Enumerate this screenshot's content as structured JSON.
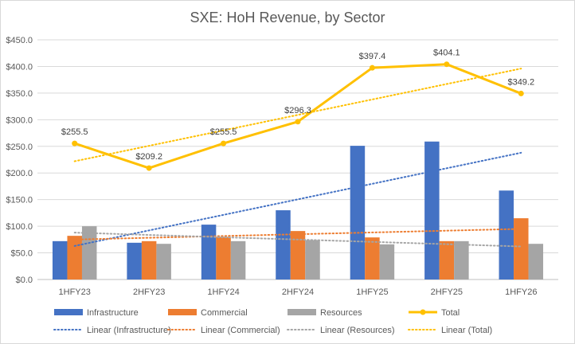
{
  "chart_data": {
    "type": "bar",
    "title": "SXE: HoH Revenue, by Sector",
    "xlabel": "",
    "ylabel": "",
    "ylim": [
      0,
      450
    ],
    "ytick_step": 50,
    "ytick_labels": [
      "$0.0",
      "$50.0",
      "$100.0",
      "$150.0",
      "$200.0",
      "$250.0",
      "$300.0",
      "$350.0",
      "$400.0",
      "$450.0"
    ],
    "grid": true,
    "legend_position": "bottom",
    "categories": [
      "1HFY23",
      "2HFY23",
      "1HFY24",
      "2HFY24",
      "1HFY25",
      "2HFY25",
      "1HFY26"
    ],
    "series": [
      {
        "name": "Infrastructure",
        "type": "bar",
        "color": "#4472c4",
        "values": [
          72,
          69,
          103,
          130,
          251,
          259,
          167
        ]
      },
      {
        "name": "Commercial",
        "type": "bar",
        "color": "#ed7d31",
        "values": [
          82,
          72,
          80,
          91,
          79,
          72,
          115
        ]
      },
      {
        "name": "Resources",
        "type": "bar",
        "color": "#a5a5a5",
        "values": [
          100,
          67,
          72,
          74,
          66,
          72,
          67
        ]
      },
      {
        "name": "Total",
        "type": "line",
        "color": "#ffc000",
        "values": [
          255.5,
          209.2,
          255.5,
          296.3,
          397.4,
          404.1,
          349.2
        ],
        "data_labels": [
          "$255.5",
          "$209.2",
          "$255.5",
          "$296.3",
          "$397.4",
          "$404.1",
          "$349.2"
        ]
      }
    ],
    "trendlines": [
      {
        "name": "Linear (Infrastructure)",
        "color": "#4472c4",
        "start": 63,
        "end": 238
      },
      {
        "name": "Linear (Commercial)",
        "color": "#ed7d31",
        "start": 75,
        "end": 95
      },
      {
        "name": "Linear (Resources)",
        "color": "#a5a5a5",
        "start": 88,
        "end": 62
      },
      {
        "name": "Linear (Total)",
        "color": "#ffc000",
        "start": 222,
        "end": 396
      }
    ]
  }
}
